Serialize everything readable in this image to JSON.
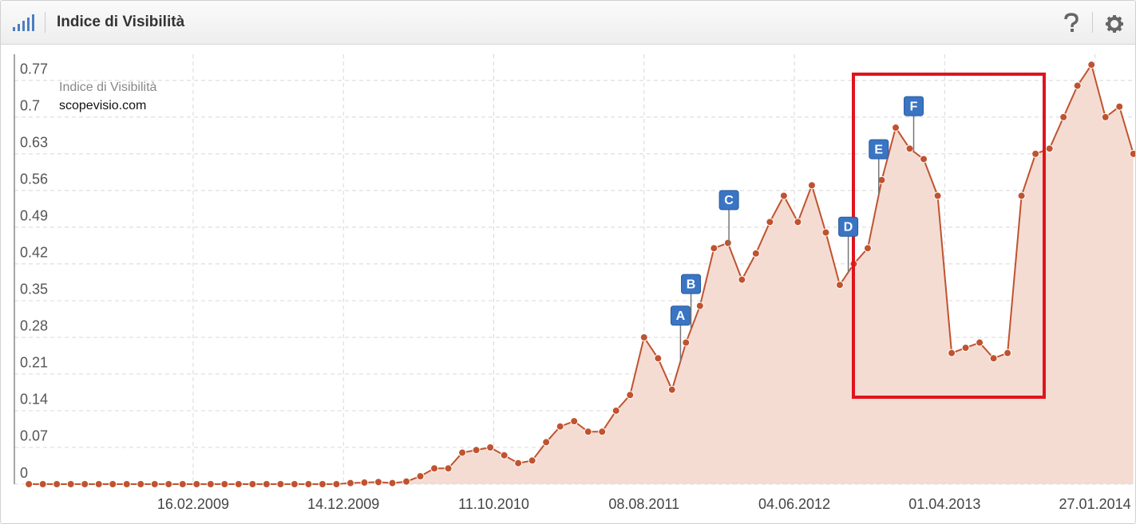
{
  "chart_data": {
    "type": "area",
    "title": "Indice di Visibilità",
    "series": [
      {
        "name": "scopevisio.com",
        "color": "#c0532f",
        "fill": "#f4dcd3",
        "values": [
          0,
          0,
          0,
          0,
          0,
          0,
          0,
          0,
          0,
          0,
          0,
          0,
          0,
          0,
          0,
          0,
          0,
          0,
          0,
          0,
          0,
          0,
          0,
          0.002,
          0.003,
          0.004,
          0.002,
          0.005,
          0.015,
          0.03,
          0.03,
          0.06,
          0.065,
          0.07,
          0.055,
          0.04,
          0.045,
          0.08,
          0.11,
          0.12,
          0.1,
          0.1,
          0.14,
          0.17,
          0.28,
          0.24,
          0.18,
          0.27,
          0.34,
          0.45,
          0.46,
          0.39,
          0.44,
          0.5,
          0.55,
          0.5,
          0.57,
          0.48,
          0.38,
          0.42,
          0.45,
          0.58,
          0.68,
          0.64,
          0.62,
          0.55,
          0.25,
          0.26,
          0.27,
          0.24,
          0.25,
          0.55,
          0.63,
          0.64,
          0.7,
          0.76,
          0.8,
          0.7,
          0.72,
          0.63
        ]
      }
    ],
    "x": [
      "24.03.2008",
      "21.04.2008",
      "19.05.2008",
      "16.06.2008",
      "14.07.2008",
      "11.08.2008",
      "08.09.2008",
      "06.10.2008",
      "03.11.2008",
      "01.12.2008",
      "29.12.2008",
      "26.01.2009",
      "23.02.2009",
      "23.03.2009",
      "20.04.2009",
      "18.05.2009",
      "15.06.2009",
      "13.07.2009",
      "10.08.2009",
      "07.09.2009",
      "05.10.2009",
      "02.11.2009",
      "30.11.2009",
      "28.12.2009",
      "25.01.2010",
      "22.02.2010",
      "22.03.2010",
      "19.04.2010",
      "17.05.2010",
      "14.06.2010",
      "12.07.2010",
      "09.08.2010",
      "06.09.2010",
      "04.10.2010",
      "01.11.2010",
      "29.11.2010",
      "27.12.2010",
      "24.01.2011",
      "21.02.2011",
      "21.03.2011",
      "18.04.2011",
      "16.05.2011",
      "13.06.2011",
      "11.07.2011",
      "08.08.2011",
      "05.09.2011",
      "03.10.2011",
      "31.10.2011",
      "28.11.2011",
      "26.12.2011",
      "23.01.2012",
      "20.02.2012",
      "19.03.2012",
      "16.04.2012",
      "14.05.2012",
      "11.06.2012",
      "09.07.2012",
      "06.08.2012",
      "03.09.2012",
      "01.10.2012",
      "29.10.2012",
      "26.11.2012",
      "24.12.2012",
      "21.01.2013",
      "18.02.2013",
      "18.03.2013",
      "15.04.2013",
      "13.05.2013",
      "10.06.2013",
      "08.07.2013",
      "05.08.2013",
      "02.09.2013",
      "30.09.2013",
      "28.10.2013",
      "25.11.2013",
      "23.12.2013",
      "20.01.2014",
      "17.02.2014",
      "17.03.2014",
      "14.04.2014"
    ],
    "xlim": [
      "24.02.2008",
      "16.04.2014"
    ],
    "xticks": [
      "16.02.2009",
      "14.12.2009",
      "11.10.2010",
      "08.08.2011",
      "04.06.2012",
      "01.04.2013",
      "27.01.2014"
    ],
    "ylim": [
      0,
      0.82
    ],
    "yticks": [
      0,
      0.07,
      0.14,
      0.21,
      0.28,
      0.35,
      0.42,
      0.49,
      0.56,
      0.63,
      0.7,
      0.77
    ],
    "grid": true,
    "annotations": [
      {
        "label": "A",
        "x": "20.10.2011"
      },
      {
        "label": "B",
        "x": "10.11.2011"
      },
      {
        "label": "C",
        "x": "25.01.2012"
      },
      {
        "label": "D",
        "x": "20.09.2012"
      },
      {
        "label": "E",
        "x": "20.11.2012"
      },
      {
        "label": "F",
        "x": "29.01.2013"
      }
    ]
  }
}
